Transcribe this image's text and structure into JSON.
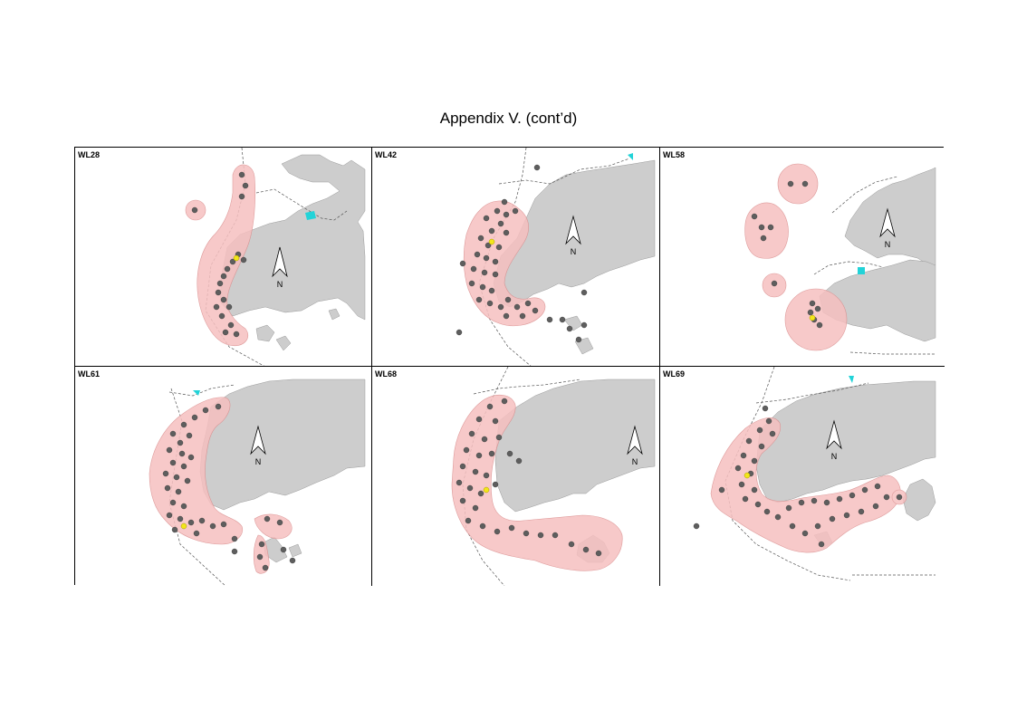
{
  "page_title": "Appendix V.  (cont’d)",
  "colors": {
    "land": "#cdcdcd",
    "range_fill": "#f6c0c0",
    "range_stroke": "#d98a8a",
    "sighting": "#5e5e5e",
    "capture_point": "#f2e61a",
    "boundary": "#555555",
    "water_feature": "#22d3d8"
  },
  "north_arrow_label": "N",
  "panels": [
    {
      "id": "WL28"
    },
    {
      "id": "WL42"
    },
    {
      "id": "WL58"
    },
    {
      "id": "WL61"
    },
    {
      "id": "WL68"
    },
    {
      "id": "WL69"
    }
  ]
}
